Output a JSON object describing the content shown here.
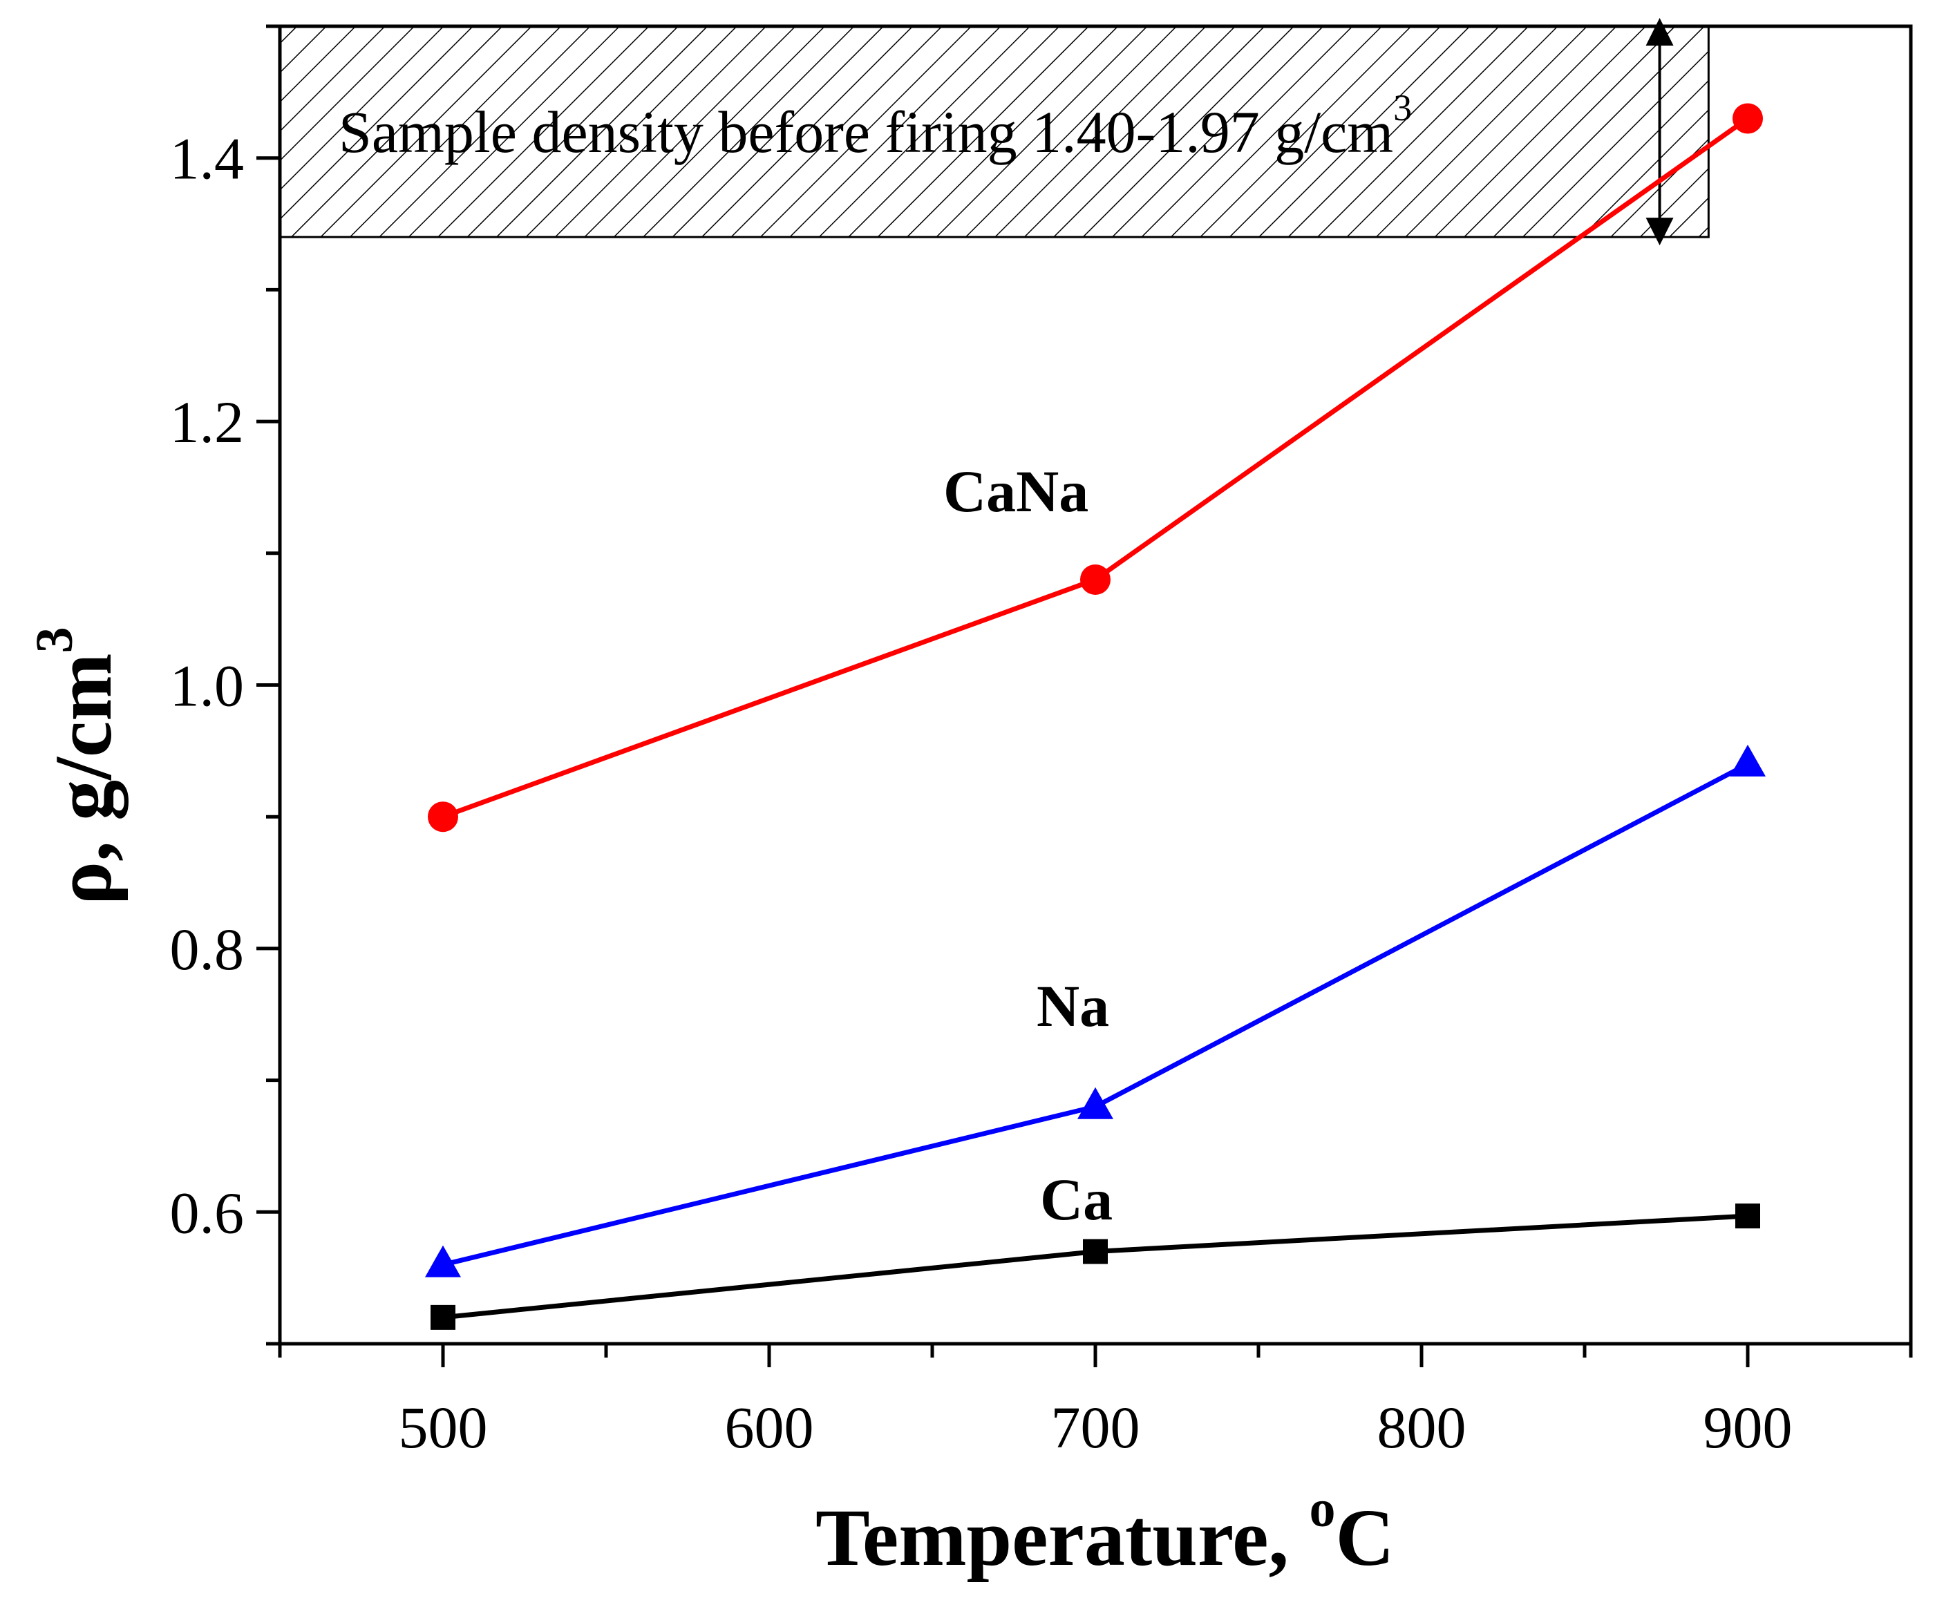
{
  "chart_data": {
    "type": "line",
    "xlabel": "Temperature, ",
    "xlabel_sup": "o",
    "xlabel_suffix": "C",
    "ylabel": "ρ, g/cm",
    "ylabel_sup": "3",
    "xlim": [
      450,
      950
    ],
    "ylim": [
      0.5,
      1.5
    ],
    "x_ticks": [
      500,
      600,
      700,
      800,
      900
    ],
    "x_tick_labels": [
      "500",
      "600",
      "700",
      "800",
      "900"
    ],
    "x_minor_ticks": [
      450,
      550,
      650,
      750,
      850,
      950
    ],
    "y_ticks": [
      0.6,
      0.8,
      1.0,
      1.2,
      1.4
    ],
    "y_tick_labels": [
      "0.6",
      "0.8",
      "1.0",
      "1.2",
      "1.4"
    ],
    "y_minor_ticks": [
      0.5,
      0.7,
      0.9,
      1.1,
      1.3,
      1.5
    ],
    "grid": false,
    "series": [
      {
        "name": "CaNa",
        "color": "#ff0000",
        "marker": "circle",
        "x": [
          500,
          700,
          900
        ],
        "values": [
          0.9,
          1.08,
          1.43
        ]
      },
      {
        "name": "Na",
        "color": "#0000ff",
        "marker": "triangle",
        "x": [
          500,
          700,
          900
        ],
        "values": [
          0.56,
          0.68,
          0.94
        ]
      },
      {
        "name": "Ca",
        "color": "#000000",
        "marker": "square",
        "x": [
          500,
          700,
          900
        ],
        "values": [
          0.52,
          0.57,
          0.597
        ]
      }
    ],
    "annotation": {
      "text": "Sample density before firing 1.40-1.97 g/cm",
      "text_sup": "3",
      "band_y_range": [
        1.34,
        1.5
      ],
      "band_x_range": [
        450,
        888
      ],
      "arrow_x": 873
    }
  }
}
